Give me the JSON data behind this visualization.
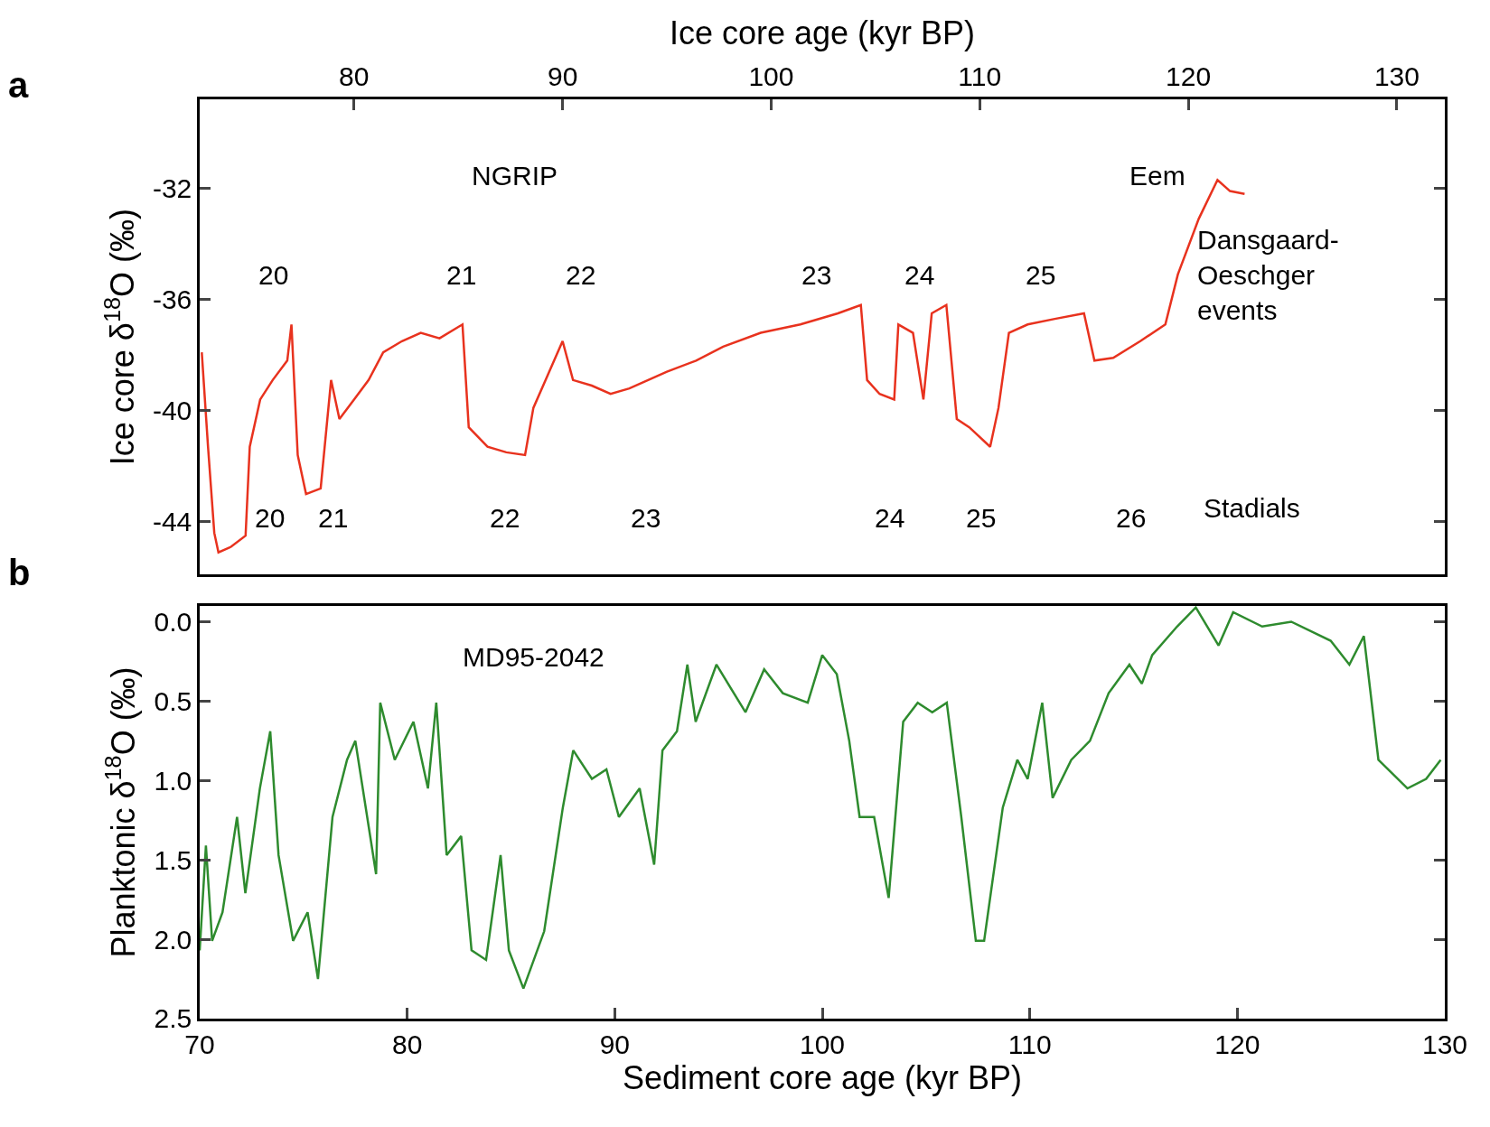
{
  "chart_data": [
    {
      "type": "line",
      "xlabel": "Ice core age (kyr BP)",
      "ylabel": "Ice core δ$^{18}$O (‰)",
      "xlim": [
        72.6,
        132.3
      ],
      "xticks": [
        80,
        90,
        100,
        110,
        120,
        130
      ],
      "ylim": [
        -45.9,
        -28.8
      ],
      "yticks": [
        -32,
        -36,
        -40,
        -44
      ],
      "marker": "none",
      "line_style": "solid",
      "annotations": [
        "a",
        "NGRIP",
        "Eem",
        "Dansgaard-\nOeschger\nevents",
        "Stadials",
        "20",
        "21",
        "22",
        "23",
        "24",
        "25",
        "20",
        "21",
        "22",
        "23",
        "24",
        "25",
        "26"
      ],
      "series": [
        {
          "color": "#e8321e",
          "x": [
            72.7,
            73.0,
            73.3,
            73.5,
            74.1,
            74.8,
            75.0,
            75.5,
            76.1,
            76.8,
            77.0,
            77.3,
            77.7,
            78.4,
            78.9,
            79.3,
            80.0,
            80.7,
            81.4,
            82.3,
            83.2,
            84.1,
            85.2,
            85.5,
            86.4,
            87.3,
            88.2,
            88.6,
            89.3,
            90.0,
            90.5,
            91.4,
            92.3,
            93.2,
            94.1,
            95.0,
            96.4,
            97.7,
            99.5,
            101.4,
            103.2,
            104.3,
            104.6,
            105.2,
            105.9,
            106.1,
            106.8,
            107.3,
            107.7,
            108.4,
            108.9,
            109.5,
            110.5,
            110.9,
            111.4,
            112.3,
            113.6,
            115.0,
            115.5,
            116.4,
            117.7,
            118.9,
            119.5,
            120.5,
            121.4,
            122.0,
            122.7
          ],
          "values": [
            -37.9,
            -41.3,
            -44.4,
            -45.1,
            -44.9,
            -44.5,
            -41.3,
            -39.6,
            -38.9,
            -38.2,
            -36.9,
            -41.6,
            -43.0,
            -42.8,
            -38.9,
            -40.3,
            -39.6,
            -38.9,
            -37.9,
            -37.5,
            -37.2,
            -37.4,
            -36.9,
            -40.6,
            -41.3,
            -41.5,
            -41.6,
            -39.9,
            -38.7,
            -37.5,
            -38.9,
            -39.1,
            -39.4,
            -39.2,
            -38.9,
            -38.6,
            -38.2,
            -37.7,
            -37.2,
            -36.9,
            -36.5,
            -36.2,
            -38.9,
            -39.4,
            -39.6,
            -36.9,
            -37.2,
            -39.6,
            -36.5,
            -36.2,
            -40.3,
            -40.6,
            -41.3,
            -39.9,
            -37.2,
            -36.9,
            -36.7,
            -36.5,
            -38.2,
            -38.1,
            -37.5,
            -36.9,
            -35.1,
            -33.1,
            -31.7,
            -32.1,
            -32.2
          ]
        }
      ]
    },
    {
      "type": "line",
      "xlabel": "Sediment core age (kyr BP)",
      "ylabel": "Planktonic δ$^{18}$O (‰)",
      "xlim": [
        70,
        130
      ],
      "xticks": [
        70,
        80,
        90,
        100,
        110,
        120,
        130
      ],
      "ylim": [
        2.5,
        -0.1
      ],
      "yticks": [
        {
          "value": 0,
          "label": "0.0"
        },
        {
          "value": 0.5,
          "label": "0.5"
        },
        {
          "value": 1,
          "label": "1.0"
        },
        {
          "value": 1.5,
          "label": "1.5"
        },
        {
          "value": 2,
          "label": "2.0"
        },
        {
          "value": 2.5,
          "label": "2.5"
        }
      ],
      "marker": "none",
      "line_style": "solid",
      "annotations": [
        "b",
        "MD95-2042"
      ],
      "series": [
        {
          "color": "#2e8b2e",
          "x": [
            70.0,
            70.3,
            70.6,
            71.1,
            71.8,
            72.2,
            72.9,
            73.4,
            73.8,
            74.5,
            75.2,
            75.7,
            76.4,
            77.1,
            77.5,
            78.5,
            78.7,
            79.4,
            80.3,
            81.0,
            81.4,
            81.9,
            82.6,
            83.1,
            83.8,
            84.5,
            84.9,
            85.6,
            86.6,
            87.5,
            88.0,
            88.9,
            89.6,
            90.2,
            91.2,
            91.9,
            92.3,
            93.0,
            93.5,
            93.9,
            94.9,
            96.3,
            97.2,
            98.1,
            99.3,
            100.0,
            100.7,
            101.3,
            101.8,
            102.5,
            103.2,
            103.9,
            104.6,
            105.3,
            106.0,
            106.7,
            107.4,
            107.8,
            108.7,
            109.4,
            109.9,
            110.6,
            111.1,
            112.0,
            112.9,
            113.8,
            114.8,
            115.4,
            115.9,
            117.1,
            118.0,
            119.1,
            119.8,
            121.2,
            122.6,
            124.5,
            125.4,
            126.1,
            126.8,
            128.2,
            129.1,
            129.8
          ],
          "values": [
            2.07,
            1.41,
            2.01,
            1.83,
            1.23,
            1.71,
            1.05,
            0.69,
            1.47,
            2.01,
            1.83,
            2.25,
            1.23,
            0.87,
            0.75,
            1.59,
            0.51,
            0.87,
            0.63,
            1.05,
            0.51,
            1.47,
            1.35,
            2.07,
            2.13,
            1.47,
            2.07,
            2.31,
            1.95,
            1.17,
            0.81,
            0.99,
            0.93,
            1.23,
            1.05,
            1.53,
            0.81,
            0.69,
            0.27,
            0.63,
            0.27,
            0.57,
            0.3,
            0.45,
            0.51,
            0.21,
            0.33,
            0.75,
            1.23,
            1.23,
            1.74,
            0.63,
            0.51,
            0.57,
            0.51,
            1.23,
            2.01,
            2.01,
            1.17,
            0.87,
            0.99,
            0.51,
            1.11,
            0.87,
            0.75,
            0.45,
            0.27,
            0.39,
            0.21,
            0.03,
            -0.09,
            0.15,
            -0.06,
            0.03,
            0.0,
            0.12,
            0.27,
            0.09,
            0.87,
            1.05,
            0.99,
            0.87
          ]
        }
      ]
    }
  ]
}
